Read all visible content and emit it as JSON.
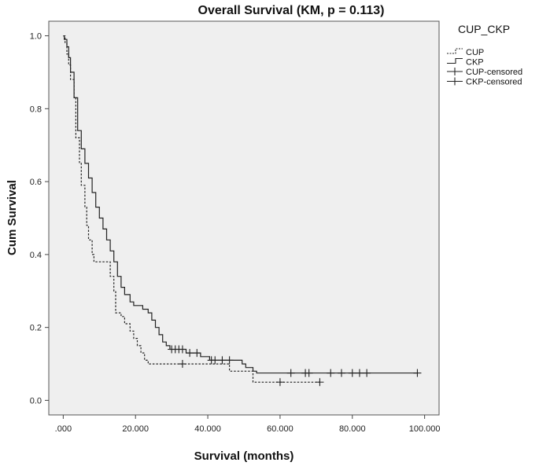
{
  "chart_data": {
    "type": "line",
    "title": "Overall Survival (KM, p = 0.113)",
    "xlabel": "Survival (months)",
    "ylabel": "Cum Survival",
    "xlim": [
      -4,
      104
    ],
    "ylim": [
      -0.04,
      1.04
    ],
    "x_ticks": [
      0,
      20,
      40,
      60,
      80,
      100
    ],
    "x_tick_labels": [
      ".000",
      "20.000",
      "40.000",
      "60.000",
      "80.000",
      "100.000"
    ],
    "y_ticks": [
      0,
      0.2,
      0.4,
      0.6,
      0.8,
      1.0
    ],
    "y_tick_labels": [
      "0.0",
      "0.2",
      "0.4",
      "0.6",
      "0.8",
      "1.0"
    ],
    "legend": {
      "title": "CUP_CKP",
      "position": "right",
      "entries": [
        {
          "label": "CUP",
          "kind": "line",
          "style": "dashed"
        },
        {
          "label": "CKP",
          "kind": "line",
          "style": "solid"
        },
        {
          "label": "CUP-censored",
          "kind": "censor"
        },
        {
          "label": "CKP-censored",
          "kind": "censor"
        }
      ]
    },
    "series": [
      {
        "name": "CUP",
        "style": "dashed",
        "points": [
          [
            0,
            1.0
          ],
          [
            0.5,
            0.98
          ],
          [
            1.0,
            0.95
          ],
          [
            1.5,
            0.92
          ],
          [
            2.0,
            0.88
          ],
          [
            3.0,
            0.83
          ],
          [
            3.5,
            0.72
          ],
          [
            4.5,
            0.65
          ],
          [
            5.0,
            0.59
          ],
          [
            6.0,
            0.53
          ],
          [
            6.5,
            0.48
          ],
          [
            7.0,
            0.44
          ],
          [
            8.0,
            0.4
          ],
          [
            8.5,
            0.38
          ],
          [
            10.0,
            0.38
          ],
          [
            13.0,
            0.34
          ],
          [
            14.0,
            0.3
          ],
          [
            14.5,
            0.24
          ],
          [
            16.0,
            0.23
          ],
          [
            17.0,
            0.21
          ],
          [
            18.5,
            0.19
          ],
          [
            19.5,
            0.17
          ],
          [
            20.5,
            0.15
          ],
          [
            21.5,
            0.13
          ],
          [
            22.5,
            0.11
          ],
          [
            23.5,
            0.1
          ],
          [
            45.0,
            0.1
          ],
          [
            46.0,
            0.08
          ],
          [
            52.0,
            0.08
          ],
          [
            52.5,
            0.05
          ],
          [
            71.0,
            0.05
          ]
        ],
        "censored": [
          [
            33,
            0.1
          ],
          [
            60,
            0.05
          ],
          [
            71,
            0.05
          ]
        ]
      },
      {
        "name": "CKP",
        "style": "solid",
        "points": [
          [
            0,
            1.0
          ],
          [
            0.3,
            0.99
          ],
          [
            1.0,
            0.97
          ],
          [
            1.5,
            0.94
          ],
          [
            2.0,
            0.9
          ],
          [
            3.0,
            0.83
          ],
          [
            4.0,
            0.74
          ],
          [
            5.0,
            0.69
          ],
          [
            6.0,
            0.65
          ],
          [
            7.0,
            0.61
          ],
          [
            8.0,
            0.57
          ],
          [
            9.0,
            0.53
          ],
          [
            10.0,
            0.5
          ],
          [
            11.0,
            0.47
          ],
          [
            12.0,
            0.44
          ],
          [
            13.0,
            0.41
          ],
          [
            14.0,
            0.38
          ],
          [
            15.0,
            0.34
          ],
          [
            16.0,
            0.31
          ],
          [
            17.0,
            0.29
          ],
          [
            18.5,
            0.27
          ],
          [
            19.5,
            0.26
          ],
          [
            22.0,
            0.25
          ],
          [
            23.5,
            0.24
          ],
          [
            24.5,
            0.22
          ],
          [
            25.5,
            0.2
          ],
          [
            26.5,
            0.18
          ],
          [
            27.5,
            0.16
          ],
          [
            28.5,
            0.15
          ],
          [
            29.5,
            0.14
          ],
          [
            34.0,
            0.13
          ],
          [
            38.0,
            0.12
          ],
          [
            40.5,
            0.11
          ],
          [
            49.5,
            0.1
          ],
          [
            50.5,
            0.09
          ],
          [
            52.5,
            0.08
          ],
          [
            53.5,
            0.075
          ],
          [
            98.0,
            0.075
          ]
        ],
        "censored": [
          [
            30,
            0.14
          ],
          [
            31,
            0.14
          ],
          [
            32,
            0.14
          ],
          [
            33,
            0.14
          ],
          [
            35,
            0.13
          ],
          [
            37,
            0.13
          ],
          [
            41,
            0.11
          ],
          [
            42,
            0.11
          ],
          [
            44,
            0.11
          ],
          [
            46,
            0.11
          ],
          [
            63,
            0.075
          ],
          [
            67,
            0.075
          ],
          [
            68,
            0.075
          ],
          [
            74,
            0.075
          ],
          [
            77,
            0.075
          ],
          [
            80,
            0.075
          ],
          [
            82,
            0.075
          ],
          [
            84,
            0.075
          ],
          [
            98,
            0.075
          ]
        ]
      }
    ]
  }
}
